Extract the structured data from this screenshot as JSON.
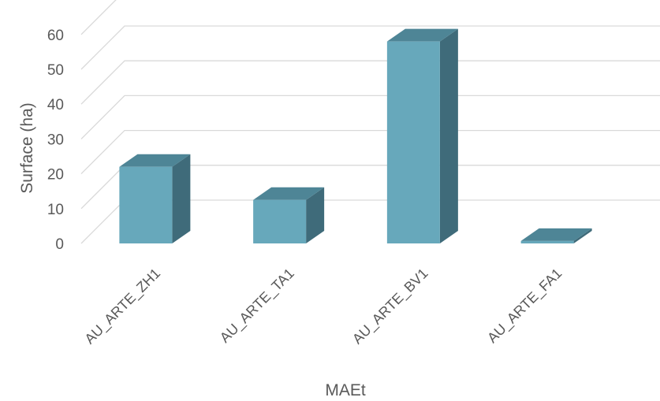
{
  "chart_data": {
    "type": "bar",
    "style": "3d-column",
    "categories": [
      "AU_ARTE_ZH1",
      "AU_ARTE_TA1",
      "AU_ARTE_BV1",
      "AU_ARTE_FA1"
    ],
    "values": [
      22,
      12.5,
      58,
      0.7
    ],
    "title": "",
    "xlabel": "MAEt",
    "ylabel": "Surface (ha)",
    "ylim": [
      0,
      60
    ],
    "yticks": [
      0,
      10,
      20,
      30,
      40,
      50,
      60
    ],
    "grid": true,
    "legend": "none",
    "colors": {
      "front": "#67a8bb",
      "side": "#3f6b7a",
      "top": "#4e8596",
      "grid": "#d9d9d9",
      "text": "#595959"
    }
  }
}
